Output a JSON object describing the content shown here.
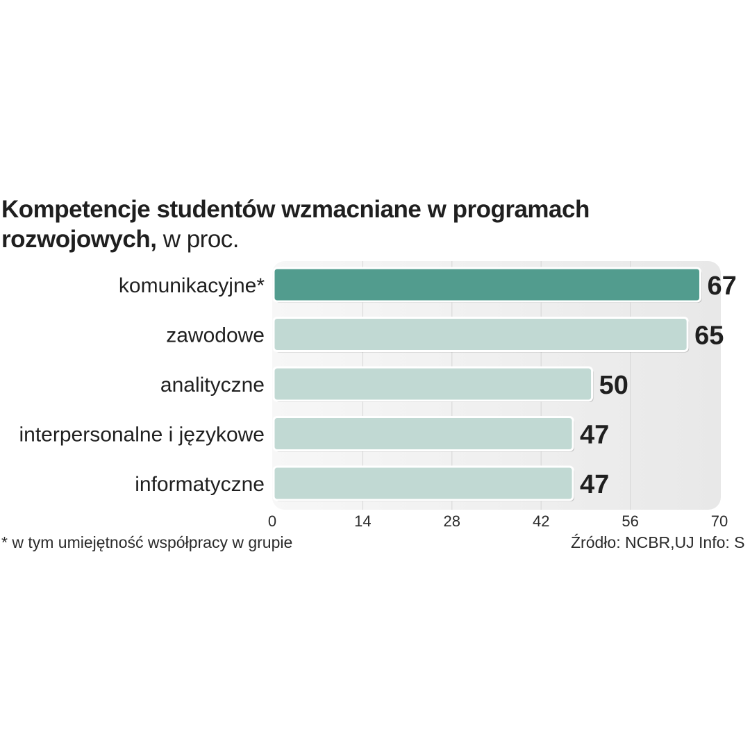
{
  "header": {
    "title": "Kompetencje studentów wzmacniane w programach rozwojowych,",
    "unit": "w proc."
  },
  "chart_data": {
    "type": "bar",
    "orientation": "horizontal",
    "title": "Kompetencje studentów wzmacniane w programach rozwojowych, w proc.",
    "categories": [
      "komunikacyjne*",
      "zawodowe",
      "analityczne",
      "interpersonalne i językowe",
      "informatyczne"
    ],
    "values": [
      67,
      65,
      50,
      47,
      47
    ],
    "value_labels": [
      "67",
      "65",
      "50",
      "47",
      "47"
    ],
    "xlim": [
      0,
      70
    ],
    "x_ticks": [
      "0",
      "14",
      "28",
      "42",
      "56",
      "70"
    ],
    "grid": true,
    "highlight_index": 0,
    "colors": {
      "highlight": "#529c8e",
      "bar": "#c1d9d3",
      "background": "#ececec",
      "grid": "#d6d6d6"
    }
  },
  "footer": {
    "footnote": "* w tym umiejętność współpracy w grupie",
    "source": "Źródło: NCBR,UJ  Info: S"
  }
}
